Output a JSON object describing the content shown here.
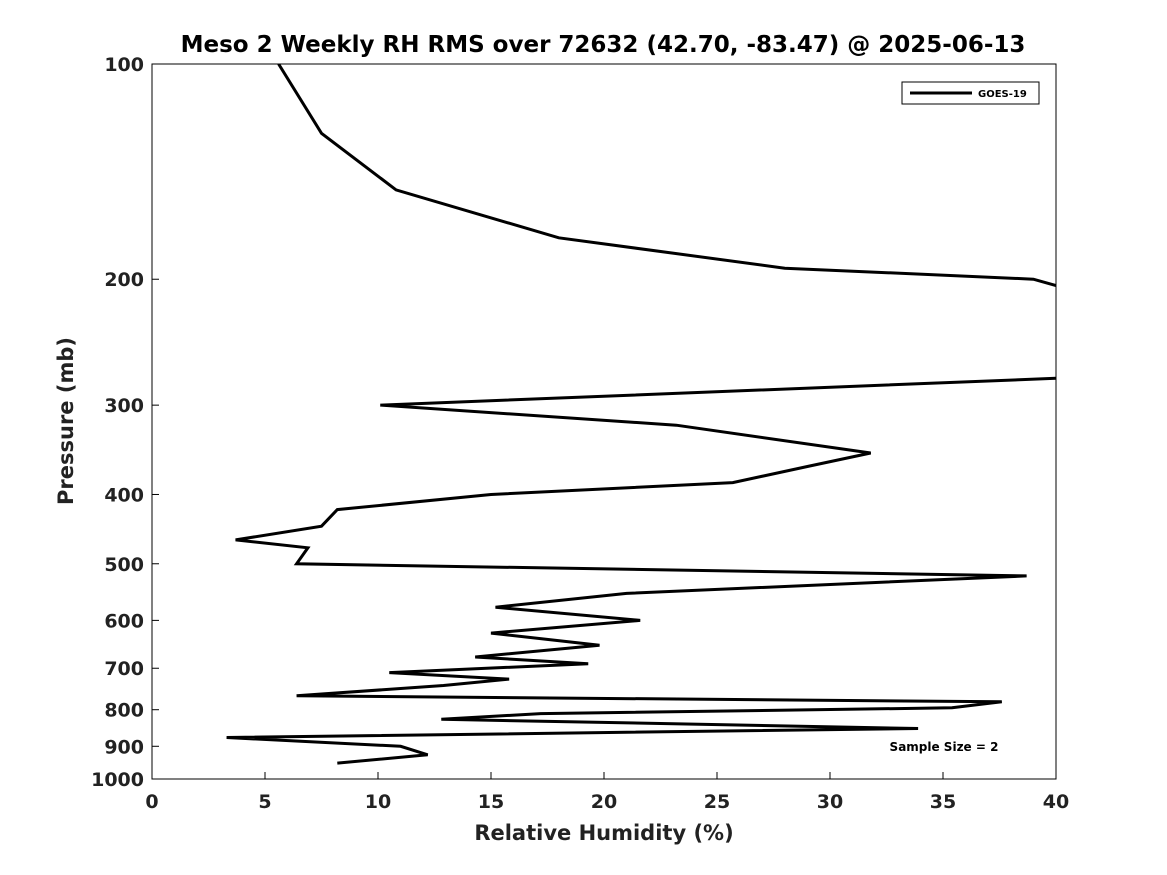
{
  "chart_data": {
    "type": "line",
    "title": "Meso 2 Weekly RH RMS over 72632 (42.70, -83.47) @ 2025-06-13",
    "xlabel": "Relative Humidity (%)",
    "ylabel": "Pressure (mb)",
    "xlim": [
      0,
      40
    ],
    "ylim": [
      100,
      1000
    ],
    "y_scale": "log",
    "y_reversed": true,
    "x_ticks": [
      0,
      5,
      10,
      15,
      20,
      25,
      30,
      35,
      40
    ],
    "y_ticks": [
      100,
      200,
      300,
      400,
      500,
      600,
      700,
      800,
      900,
      1000
    ],
    "grid": false,
    "legend": {
      "position": "top-right",
      "entries": [
        "GOES-19"
      ]
    },
    "annotation": "Sample Size = 2",
    "series": [
      {
        "name": "GOES-19",
        "color": "#000000",
        "points": [
          [
            5.6,
            100
          ],
          [
            7.5,
            125
          ],
          [
            10.8,
            150
          ],
          [
            18,
            175
          ],
          [
            28,
            193
          ],
          [
            39,
            200
          ],
          [
            40.2,
            205
          ],
          [
            40.2,
            275
          ],
          [
            10.1,
            300
          ],
          [
            23.2,
            320
          ],
          [
            31.8,
            350
          ],
          [
            29.1,
            365
          ],
          [
            25.7,
            385
          ],
          [
            15.0,
            400
          ],
          [
            8.2,
            420
          ],
          [
            7.5,
            443
          ],
          [
            3.7,
            463
          ],
          [
            6.9,
            475
          ],
          [
            6.4,
            500
          ],
          [
            38.7,
            520
          ],
          [
            21.0,
            550
          ],
          [
            15.2,
            575
          ],
          [
            21.6,
            600
          ],
          [
            15.0,
            625
          ],
          [
            19.8,
            650
          ],
          [
            14.3,
            675
          ],
          [
            19.3,
            690
          ],
          [
            10.5,
            710
          ],
          [
            15.8,
            725
          ],
          [
            12.9,
            740
          ],
          [
            6.4,
            765
          ],
          [
            37.6,
            780
          ],
          [
            35.4,
            795
          ],
          [
            17.2,
            810
          ],
          [
            12.8,
            825
          ],
          [
            33.9,
            850
          ],
          [
            3.3,
            875
          ],
          [
            11.0,
            900
          ],
          [
            12.2,
            925
          ],
          [
            8.2,
            950
          ]
        ]
      }
    ]
  }
}
